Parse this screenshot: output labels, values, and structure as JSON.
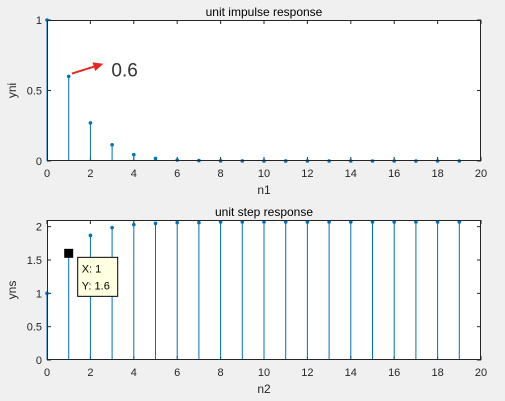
{
  "colors": {
    "stem": "#0072bd",
    "arrow": "#e8261e",
    "axes": "#262626",
    "background": "#f0f0f0",
    "plot_bg": "#ffffff"
  },
  "chart_data": [
    {
      "type": "stem",
      "title": "unit impulse response",
      "xlabel": "n1",
      "ylabel": "yni",
      "xlim": [
        0,
        20
      ],
      "ylim": [
        0,
        1
      ],
      "xticks": [
        "0",
        "2",
        "4",
        "6",
        "8",
        "10",
        "12",
        "14",
        "16",
        "18",
        "20"
      ],
      "yticks": [
        "0",
        "0.5",
        "1"
      ],
      "grid": false,
      "x": [
        0,
        1,
        2,
        3,
        4,
        5,
        6,
        7,
        8,
        9,
        10,
        11,
        12,
        13,
        14,
        15,
        16,
        17,
        18,
        19
      ],
      "y": [
        1.0,
        0.6,
        0.27,
        0.115,
        0.045,
        0.018,
        0.007,
        0.003,
        0.001,
        0.0005,
        0.0002,
        0.0001,
        0,
        0,
        0,
        0,
        0,
        0,
        0,
        0
      ],
      "annotation": {
        "text": "0.6",
        "arrow_from_x": 2.6,
        "arrow_from_y": 0.69,
        "arrow_to_x": 1.15,
        "arrow_to_y": 0.62
      }
    },
    {
      "type": "stem",
      "title": "unit step response",
      "xlabel": "n2",
      "ylabel": "yns",
      "xlim": [
        0,
        20
      ],
      "ylim": [
        0,
        2.1
      ],
      "xticks": [
        "0",
        "2",
        "4",
        "6",
        "8",
        "10",
        "12",
        "14",
        "16",
        "18",
        "20"
      ],
      "yticks": [
        "0",
        "0.5",
        "1",
        "1.5",
        "2"
      ],
      "grid": false,
      "x": [
        0,
        1,
        2,
        3,
        4,
        5,
        6,
        7,
        8,
        9,
        10,
        11,
        12,
        13,
        14,
        15,
        16,
        17,
        18,
        19
      ],
      "y": [
        1.0,
        1.6,
        1.87,
        1.985,
        2.03,
        2.05,
        2.06,
        2.06,
        2.07,
        2.07,
        2.07,
        2.07,
        2.07,
        2.07,
        2.07,
        2.07,
        2.07,
        2.07,
        2.07,
        2.07
      ],
      "datatip": {
        "x": 1,
        "y": 1.6,
        "label_x": "X: 1",
        "label_y": "Y: 1.6"
      }
    }
  ]
}
